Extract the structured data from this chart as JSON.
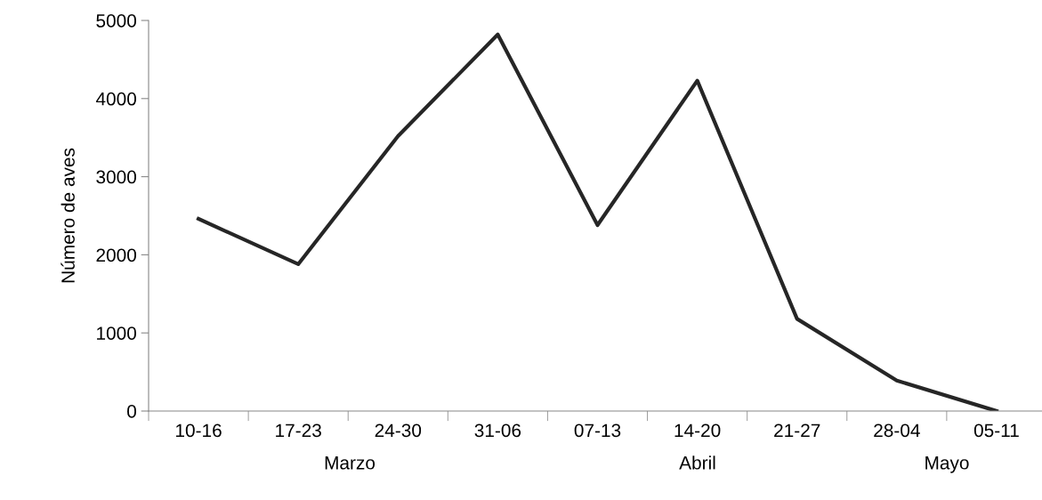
{
  "chart_data": {
    "type": "line",
    "ylabel": "Número de aves",
    "categories": [
      "10-16",
      "17-23",
      "24-30",
      "31-06",
      "07-13",
      "14-20",
      "21-27",
      "28-04",
      "05-11"
    ],
    "series": [
      {
        "color": "#262626",
        "values": [
          2460,
          1880,
          3520,
          4820,
          2380,
          4230,
          1180,
          390,
          0
        ]
      }
    ],
    "ylim": [
      0,
      5000
    ],
    "yticks": [
      0,
      1000,
      2000,
      3000,
      4000,
      5000
    ],
    "grid": false,
    "legend": false,
    "marker": "none",
    "line_style": "solid",
    "annotations": [
      "Marzo",
      "Abril",
      "Mayo"
    ]
  }
}
